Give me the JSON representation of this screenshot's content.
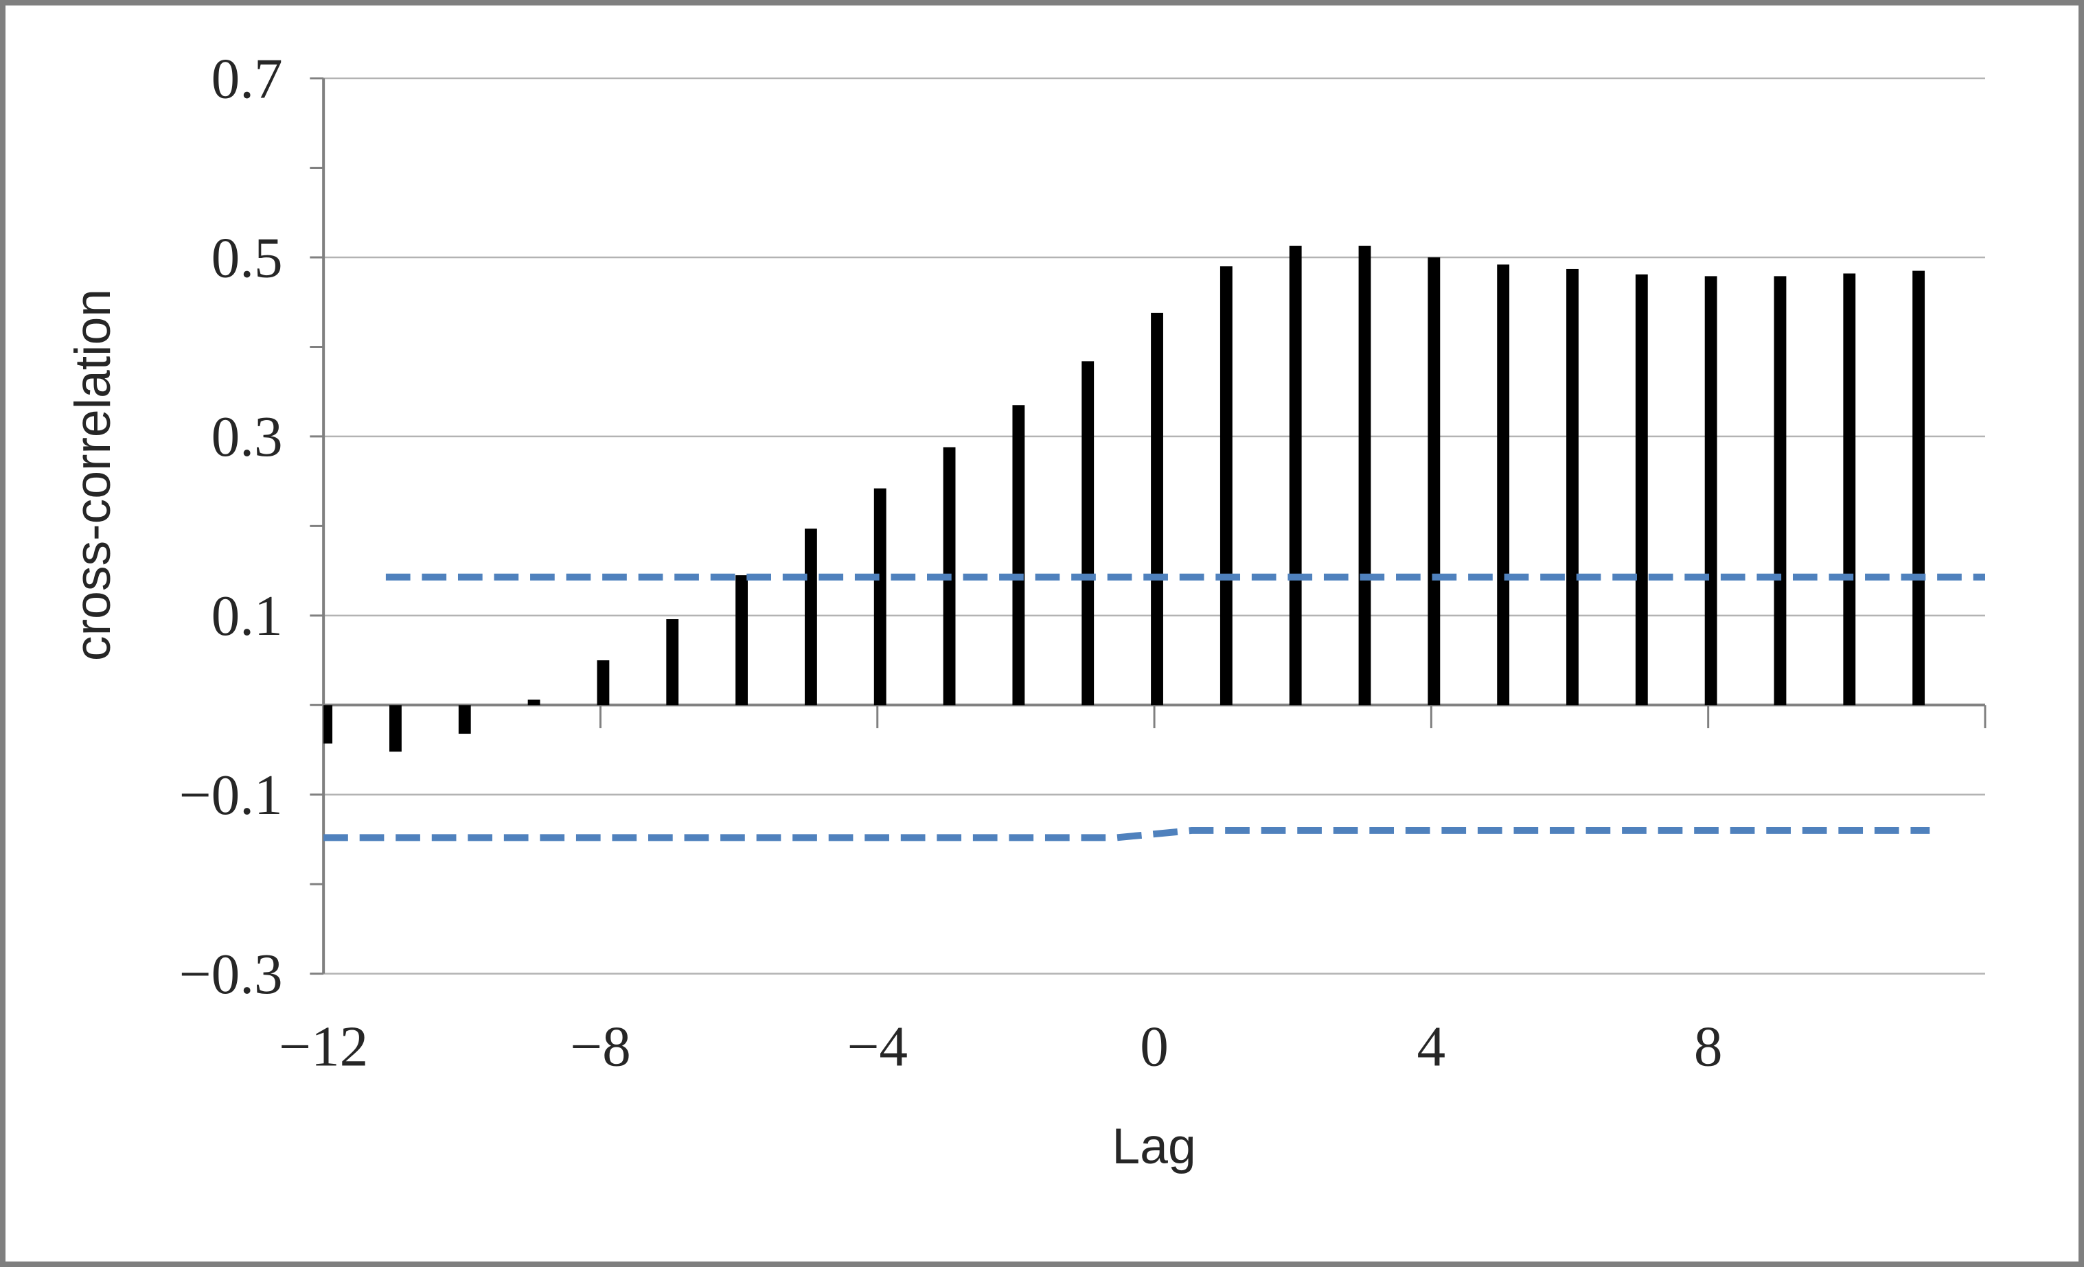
{
  "figure": {
    "background": "#ffffff",
    "border_color": "#7f7f7f"
  },
  "chart_data": {
    "type": "bar",
    "title": "",
    "xlabel": "Lag",
    "ylabel": "cross-correlation",
    "categories": [
      -12,
      -11,
      -10,
      -9,
      -8,
      -7,
      -6,
      -5,
      -4,
      -3,
      -2,
      -1,
      0,
      1,
      2,
      3,
      4,
      5,
      6,
      7,
      8,
      9,
      10,
      11
    ],
    "values": [
      -0.043,
      -0.052,
      -0.032,
      0.006,
      0.05,
      0.096,
      0.145,
      0.197,
      0.242,
      0.288,
      0.335,
      0.384,
      0.438,
      0.49,
      0.513,
      0.513,
      0.5,
      0.492,
      0.487,
      0.481,
      0.479,
      0.479,
      0.482,
      0.485
    ],
    "bar_color": "#000000",
    "xlim": [
      -12,
      12
    ],
    "ylim": [
      -0.3,
      0.7
    ],
    "grid_on": true,
    "gridline_values": [
      0.7,
      0.5,
      0.3,
      0.1,
      -0.1,
      -0.3
    ],
    "y_minor_tick_step": 0.1,
    "y_tick_values": [
      0.7,
      0.5,
      0.3,
      0.1,
      -0.1,
      -0.3
    ],
    "y_tick_labels": [
      "0.7",
      "0.5",
      "0.3",
      "0.1",
      "−0.1",
      "−0.3"
    ],
    "x_tick_values": [
      -12,
      -8,
      -4,
      0,
      4,
      8
    ],
    "x_tick_labels": [
      "−12",
      "−8",
      "−4",
      "0",
      "4",
      "8"
    ],
    "x_axis_end_tick": 12,
    "confidence_bounds": {
      "style": "dashed",
      "color": "#4F81BD",
      "upper": {
        "value": 0.143,
        "start_lag": -11.1,
        "end_lag": 12
      },
      "lower": {
        "left_value": -0.148,
        "right_value": -0.14,
        "step_lag": 0,
        "start_lag": -12,
        "end_lag": 11.2
      }
    },
    "legend": null,
    "colors": {
      "gridline": "#b3b3b3",
      "axis_line": "#808080",
      "text": "#262626"
    }
  }
}
